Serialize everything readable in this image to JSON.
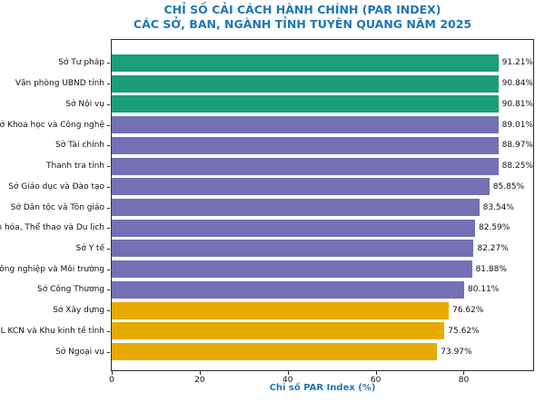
{
  "chart_data": {
    "type": "bar",
    "orientation": "horizontal",
    "title_line1": "CHỈ SỐ CẢI CÁCH HÀNH CHÍNH (PAR INDEX)",
    "title_line2": "CÁC SỞ, BAN, NGÀNH TỈNH TUYÊN QUANG NĂM 2025",
    "title_color": "#1f77b4",
    "xlabel": "Chỉ số PAR Index (%)",
    "xlim": [
      0,
      95.8
    ],
    "xticks": [
      0,
      20,
      40,
      60,
      80
    ],
    "grid": false,
    "legend": "none",
    "plot_background": "#ffffff",
    "spine_color": "#2e2e2e",
    "colors": {
      "top_group": "#1b9e77",
      "middle_group": "#7570b3",
      "bottom_group": "#e6ab02"
    },
    "bars": [
      {
        "label": "Sở Tư pháp",
        "value": 91.21,
        "display": "91.21%",
        "group": "top_group"
      },
      {
        "label": "Văn phòng UBND tỉnh",
        "value": 90.84,
        "display": "90.84%",
        "group": "top_group"
      },
      {
        "label": "Sở Nội vụ",
        "value": 90.81,
        "display": "90.81%",
        "group": "top_group"
      },
      {
        "label": "Sở Khoa học và Công nghệ",
        "value": 89.01,
        "display": "89.01%",
        "group": "middle_group"
      },
      {
        "label": "Sở Tài chính",
        "value": 88.97,
        "display": "88.97%",
        "group": "middle_group"
      },
      {
        "label": "Thanh tra tỉnh",
        "value": 88.25,
        "display": "88.25%",
        "group": "middle_group"
      },
      {
        "label": "Sở Giáo dục và Đào tạo",
        "value": 85.85,
        "display": "85.85%",
        "group": "middle_group"
      },
      {
        "label": "Sở Dân tộc và Tôn giáo",
        "value": 83.54,
        "display": "83.54%",
        "group": "middle_group"
      },
      {
        "label": "Sở Văn hóa, Thể thao và Du lịch",
        "value": 82.59,
        "display": "82.59%",
        "group": "middle_group"
      },
      {
        "label": "Sở Y tế",
        "value": 82.27,
        "display": "82.27%",
        "group": "middle_group"
      },
      {
        "label": "Sở Nông nghiệp và Môi trường",
        "value": 81.88,
        "display": "81.88%",
        "group": "middle_group"
      },
      {
        "label": "Sở Công Thương",
        "value": 80.11,
        "display": "80.11%",
        "group": "middle_group"
      },
      {
        "label": "Sở Xây dựng",
        "value": 76.62,
        "display": "76.62%",
        "group": "bottom_group"
      },
      {
        "label": "BQL KCN và Khu kinh tế tỉnh",
        "value": 75.62,
        "display": "75.62%",
        "group": "bottom_group"
      },
      {
        "label": "Sở Ngoại vụ",
        "value": 73.97,
        "display": "73.97%",
        "group": "bottom_group"
      }
    ]
  }
}
